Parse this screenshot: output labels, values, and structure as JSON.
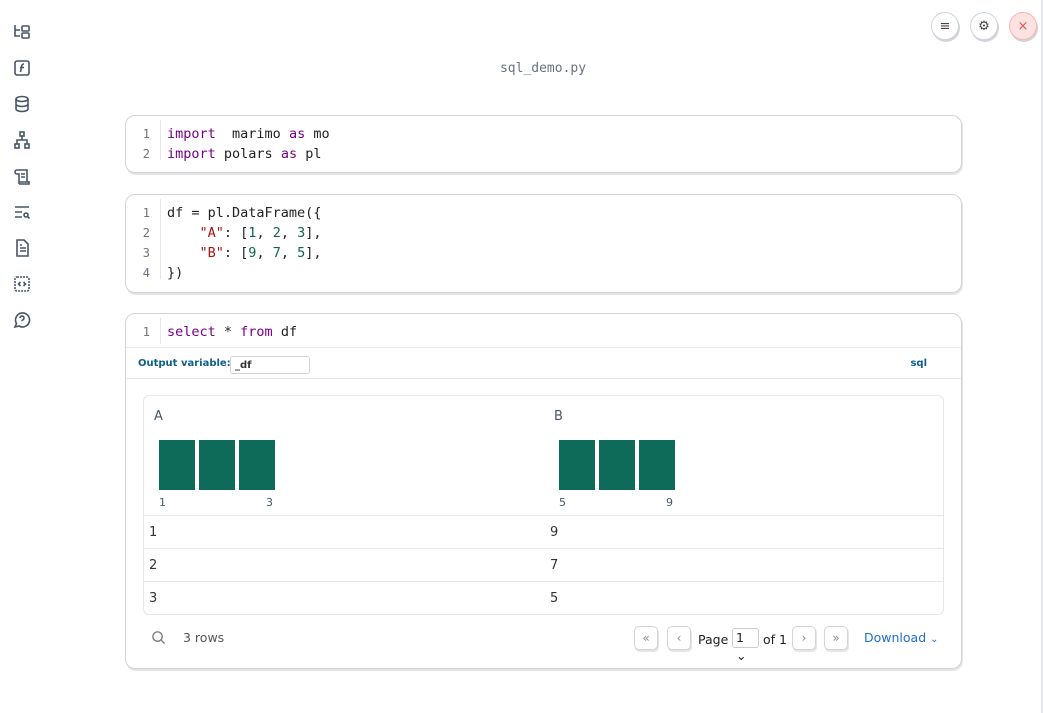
{
  "sidebar": {
    "items": [
      {
        "icon": "file-tree-icon"
      },
      {
        "icon": "function-icon"
      },
      {
        "icon": "database-icon"
      },
      {
        "icon": "dependency-graph-icon"
      },
      {
        "icon": "scroll-icon"
      },
      {
        "icon": "search-list-icon"
      },
      {
        "icon": "document-icon"
      },
      {
        "icon": "code-snippet-icon"
      },
      {
        "icon": "help-chat-icon"
      }
    ]
  },
  "topbar": {
    "menu": "≡",
    "settings": "⚙",
    "close": "×"
  },
  "title": "sql_demo.py",
  "cells": [
    {
      "lines": [
        [
          [
            "kw",
            "import"
          ],
          [
            "",
            "  marimo "
          ],
          [
            "kw",
            "as"
          ],
          [
            "",
            " mo"
          ]
        ],
        [
          [
            "kw",
            "import"
          ],
          [
            "",
            " polars "
          ],
          [
            "kw",
            "as"
          ],
          [
            "",
            " pl"
          ]
        ]
      ]
    },
    {
      "lines": [
        [
          [
            "",
            "df = pl.DataFrame({"
          ]
        ],
        [
          [
            "",
            "    "
          ],
          [
            "st",
            "\"A\""
          ],
          [
            "",
            ": ["
          ],
          [
            "nu",
            "1"
          ],
          [
            "",
            ", "
          ],
          [
            "nu",
            "2"
          ],
          [
            "",
            ", "
          ],
          [
            "nu",
            "3"
          ],
          [
            "",
            "],"
          ]
        ],
        [
          [
            "",
            "    "
          ],
          [
            "st",
            "\"B\""
          ],
          [
            "",
            ": ["
          ],
          [
            "nu",
            "9"
          ],
          [
            "",
            ", "
          ],
          [
            "nu",
            "7"
          ],
          [
            "",
            ", "
          ],
          [
            "nu",
            "5"
          ],
          [
            "",
            "],"
          ]
        ],
        [
          [
            "",
            "})"
          ]
        ]
      ]
    },
    {
      "lines": [
        [
          [
            "kw",
            "select"
          ],
          [
            "",
            " * "
          ],
          [
            "kw",
            "from"
          ],
          [
            "",
            " df"
          ]
        ]
      ]
    }
  ],
  "sql_cell": {
    "output_label": "Output variable:",
    "output_value": "_df",
    "language": "sql"
  },
  "table": {
    "columns": [
      {
        "name": "A",
        "hist_min": "1",
        "hist_max": "3"
      },
      {
        "name": "B",
        "hist_min": "5",
        "hist_max": "9"
      }
    ],
    "rows": [
      [
        "1",
        "9"
      ],
      [
        "2",
        "7"
      ],
      [
        "3",
        "5"
      ]
    ],
    "row_count": "3 rows",
    "page_label": "Page",
    "page_value": "1",
    "page_of": "of 1",
    "download": "Download",
    "bar_color": "#0e6b5a"
  }
}
